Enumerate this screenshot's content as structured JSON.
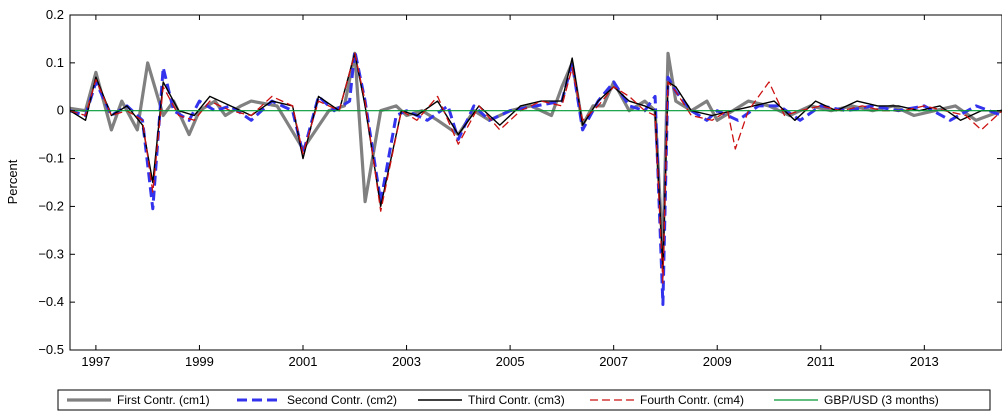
{
  "chart_data": {
    "type": "line",
    "title": "",
    "xlabel": "",
    "ylabel": "Percent",
    "xlim": [
      1996.5,
      2014.5
    ],
    "ylim": [
      -0.5,
      0.2
    ],
    "x_ticks": [
      1997,
      1999,
      2001,
      2003,
      2005,
      2007,
      2009,
      2011,
      2013
    ],
    "x_tick_labels": [
      "1997",
      "1999",
      "2001",
      "2003",
      "2005",
      "2007",
      "2009",
      "2011",
      "2013"
    ],
    "y_ticks": [
      -0.5,
      -0.4,
      -0.3,
      -0.2,
      -0.1,
      0,
      0.1,
      0.2
    ],
    "y_tick_labels": [
      "−0.5",
      "−0.4",
      "−0.3",
      "−0.2",
      "−0.1",
      "0",
      "0.1",
      "0.2"
    ],
    "grid": false,
    "legend_position": "bottom",
    "series": [
      {
        "name": "First Contr. (cm1)",
        "color": "#808080",
        "style": "solid-thick",
        "x": [
          1996.5,
          1996.8,
          1997.0,
          1997.3,
          1997.5,
          1997.8,
          1998.0,
          1998.3,
          1998.5,
          1998.8,
          1999.0,
          1999.3,
          1999.5,
          1999.8,
          2000.0,
          2000.5,
          2001.0,
          2001.5,
          2001.8,
          2002.0,
          2002.2,
          2002.5,
          2002.8,
          2003.0,
          2003.3,
          2003.6,
          2004.0,
          2004.3,
          2004.6,
          2005.0,
          2005.4,
          2005.8,
          2006.0,
          2006.2,
          2006.4,
          2006.6,
          2006.8,
          2007.0,
          2007.3,
          2007.6,
          2007.8,
          2007.95,
          2008.05,
          2008.2,
          2008.5,
          2008.8,
          2009.0,
          2009.3,
          2009.6,
          2010.0,
          2010.4,
          2010.8,
          2011.2,
          2011.6,
          2012.0,
          2012.4,
          2012.8,
          2013.2,
          2013.6,
          2014.0,
          2014.5
        ],
        "values": [
          0.005,
          0.0,
          0.08,
          -0.04,
          0.02,
          -0.04,
          0.1,
          -0.01,
          0.02,
          -0.05,
          0.0,
          0.02,
          -0.01,
          0.01,
          0.02,
          0.01,
          -0.08,
          0.0,
          0.01,
          0.12,
          -0.19,
          0.0,
          0.01,
          -0.01,
          0.0,
          -0.02,
          -0.05,
          0.0,
          -0.02,
          0.0,
          0.01,
          -0.01,
          0.05,
          0.1,
          -0.03,
          0.01,
          0.01,
          0.06,
          0.0,
          0.02,
          0.0,
          -0.3,
          0.12,
          0.02,
          0.0,
          0.02,
          -0.02,
          0.0,
          0.02,
          0.01,
          -0.01,
          0.01,
          0.0,
          0.01,
          0.0,
          0.01,
          -0.01,
          0.0,
          0.01,
          -0.02,
          0.0
        ]
      },
      {
        "name": "Second Contr. (cm2)",
        "color": "#3333ee",
        "style": "dashed-thick",
        "x": [
          1996.5,
          1996.8,
          1997.0,
          1997.3,
          1997.6,
          1997.9,
          1998.1,
          1998.3,
          1998.5,
          1998.8,
          1999.0,
          1999.3,
          1999.6,
          2000.0,
          2000.4,
          2000.8,
          2001.0,
          2001.3,
          2001.6,
          2001.9,
          2002.0,
          2002.2,
          2002.5,
          2002.8,
          2003.0,
          2003.4,
          2003.8,
          2004.0,
          2004.3,
          2004.6,
          2005.0,
          2005.5,
          2006.0,
          2006.2,
          2006.4,
          2006.7,
          2007.0,
          2007.3,
          2007.6,
          2007.8,
          2007.95,
          2008.05,
          2008.2,
          2008.5,
          2008.8,
          2009.0,
          2009.4,
          2009.8,
          2010.2,
          2010.6,
          2011.0,
          2011.5,
          2012.0,
          2012.5,
          2013.0,
          2013.5,
          2014.0,
          2014.5
        ],
        "values": [
          0.0,
          -0.01,
          0.06,
          -0.01,
          0.01,
          -0.02,
          -0.205,
          0.09,
          0.0,
          -0.02,
          0.02,
          0.0,
          0.01,
          -0.02,
          0.02,
          0.0,
          -0.09,
          0.03,
          0.0,
          0.02,
          0.125,
          0.02,
          -0.19,
          -0.01,
          0.0,
          -0.02,
          0.01,
          -0.06,
          0.01,
          -0.02,
          0.0,
          0.01,
          0.02,
          0.1,
          -0.04,
          0.02,
          0.06,
          0.01,
          0.0,
          0.03,
          -0.405,
          0.07,
          0.04,
          0.0,
          -0.02,
          0.0,
          -0.02,
          0.01,
          0.01,
          -0.02,
          0.01,
          0.0,
          0.01,
          0.0,
          0.01,
          -0.02,
          0.01,
          -0.01
        ]
      },
      {
        "name": "Third Contr. (cm3)",
        "color": "#000000",
        "style": "solid",
        "x": [
          1996.5,
          1996.8,
          1997.0,
          1997.3,
          1997.6,
          1997.9,
          1998.1,
          1998.3,
          1998.6,
          1998.9,
          1999.2,
          1999.6,
          2000.0,
          2000.4,
          2000.8,
          2001.0,
          2001.3,
          2001.7,
          2002.0,
          2002.2,
          2002.5,
          2002.9,
          2003.2,
          2003.6,
          2004.0,
          2004.4,
          2004.8,
          2005.2,
          2005.6,
          2006.0,
          2006.2,
          2006.4,
          2006.7,
          2007.0,
          2007.3,
          2007.6,
          2007.8,
          2007.95,
          2008.05,
          2008.2,
          2008.5,
          2008.9,
          2009.3,
          2009.7,
          2010.1,
          2010.5,
          2010.9,
          2011.3,
          2011.7,
          2012.1,
          2012.5,
          2012.9,
          2013.3,
          2013.7,
          2014.1,
          2014.5
        ],
        "values": [
          0.0,
          -0.02,
          0.07,
          -0.01,
          0.01,
          -0.03,
          -0.15,
          0.06,
          0.0,
          -0.01,
          0.03,
          0.01,
          -0.01,
          0.02,
          0.01,
          -0.1,
          0.03,
          0.0,
          0.12,
          0.01,
          -0.2,
          0.0,
          -0.01,
          0.02,
          -0.05,
          0.01,
          -0.03,
          0.01,
          0.02,
          0.02,
          0.11,
          -0.03,
          0.02,
          0.05,
          0.02,
          0.01,
          0.0,
          -0.33,
          0.06,
          0.05,
          0.0,
          -0.01,
          0.0,
          0.01,
          0.02,
          -0.02,
          0.02,
          0.0,
          0.02,
          0.01,
          0.01,
          0.0,
          0.01,
          -0.02,
          0.0,
          0.0
        ]
      },
      {
        "name": "Fourth Contr. (cm4)",
        "color": "#cc1111",
        "style": "dashed",
        "x": [
          1996.5,
          1996.8,
          1997.0,
          1997.3,
          1997.6,
          1997.9,
          1998.1,
          1998.3,
          1998.6,
          1998.9,
          1999.2,
          1999.6,
          2000.0,
          2000.4,
          2000.8,
          2001.0,
          2001.3,
          2001.7,
          2002.0,
          2002.2,
          2002.5,
          2002.9,
          2003.2,
          2003.6,
          2004.0,
          2004.4,
          2004.8,
          2005.2,
          2005.6,
          2006.0,
          2006.2,
          2006.4,
          2006.7,
          2007.0,
          2007.3,
          2007.6,
          2007.8,
          2007.95,
          2008.05,
          2008.2,
          2008.5,
          2008.9,
          2009.2,
          2009.35,
          2009.6,
          2010.0,
          2010.3,
          2010.6,
          2011.0,
          2011.4,
          2011.8,
          2012.2,
          2012.6,
          2013.0,
          2013.4,
          2013.8,
          2014.1,
          2014.5
        ],
        "values": [
          0.0,
          -0.01,
          0.065,
          -0.01,
          0.0,
          -0.02,
          -0.17,
          0.05,
          -0.01,
          -0.02,
          0.02,
          0.0,
          -0.01,
          0.03,
          0.01,
          -0.09,
          0.02,
          0.0,
          0.12,
          0.02,
          -0.21,
          0.0,
          -0.02,
          0.03,
          -0.07,
          0.01,
          -0.04,
          0.0,
          0.02,
          0.01,
          0.09,
          -0.02,
          0.01,
          0.05,
          0.03,
          0.0,
          -0.01,
          -0.36,
          0.06,
          0.04,
          -0.01,
          -0.02,
          0.0,
          -0.08,
          0.0,
          0.06,
          -0.01,
          0.0,
          0.01,
          0.0,
          0.01,
          0.0,
          0.0,
          0.01,
          0.0,
          -0.01,
          -0.04,
          0.0
        ]
      },
      {
        "name": "GBP/USD (3 months)",
        "color": "#009933",
        "style": "solid-thin",
        "x": [
          1996.5,
          2014.5
        ],
        "values": [
          0.0,
          0.0
        ]
      }
    ]
  }
}
